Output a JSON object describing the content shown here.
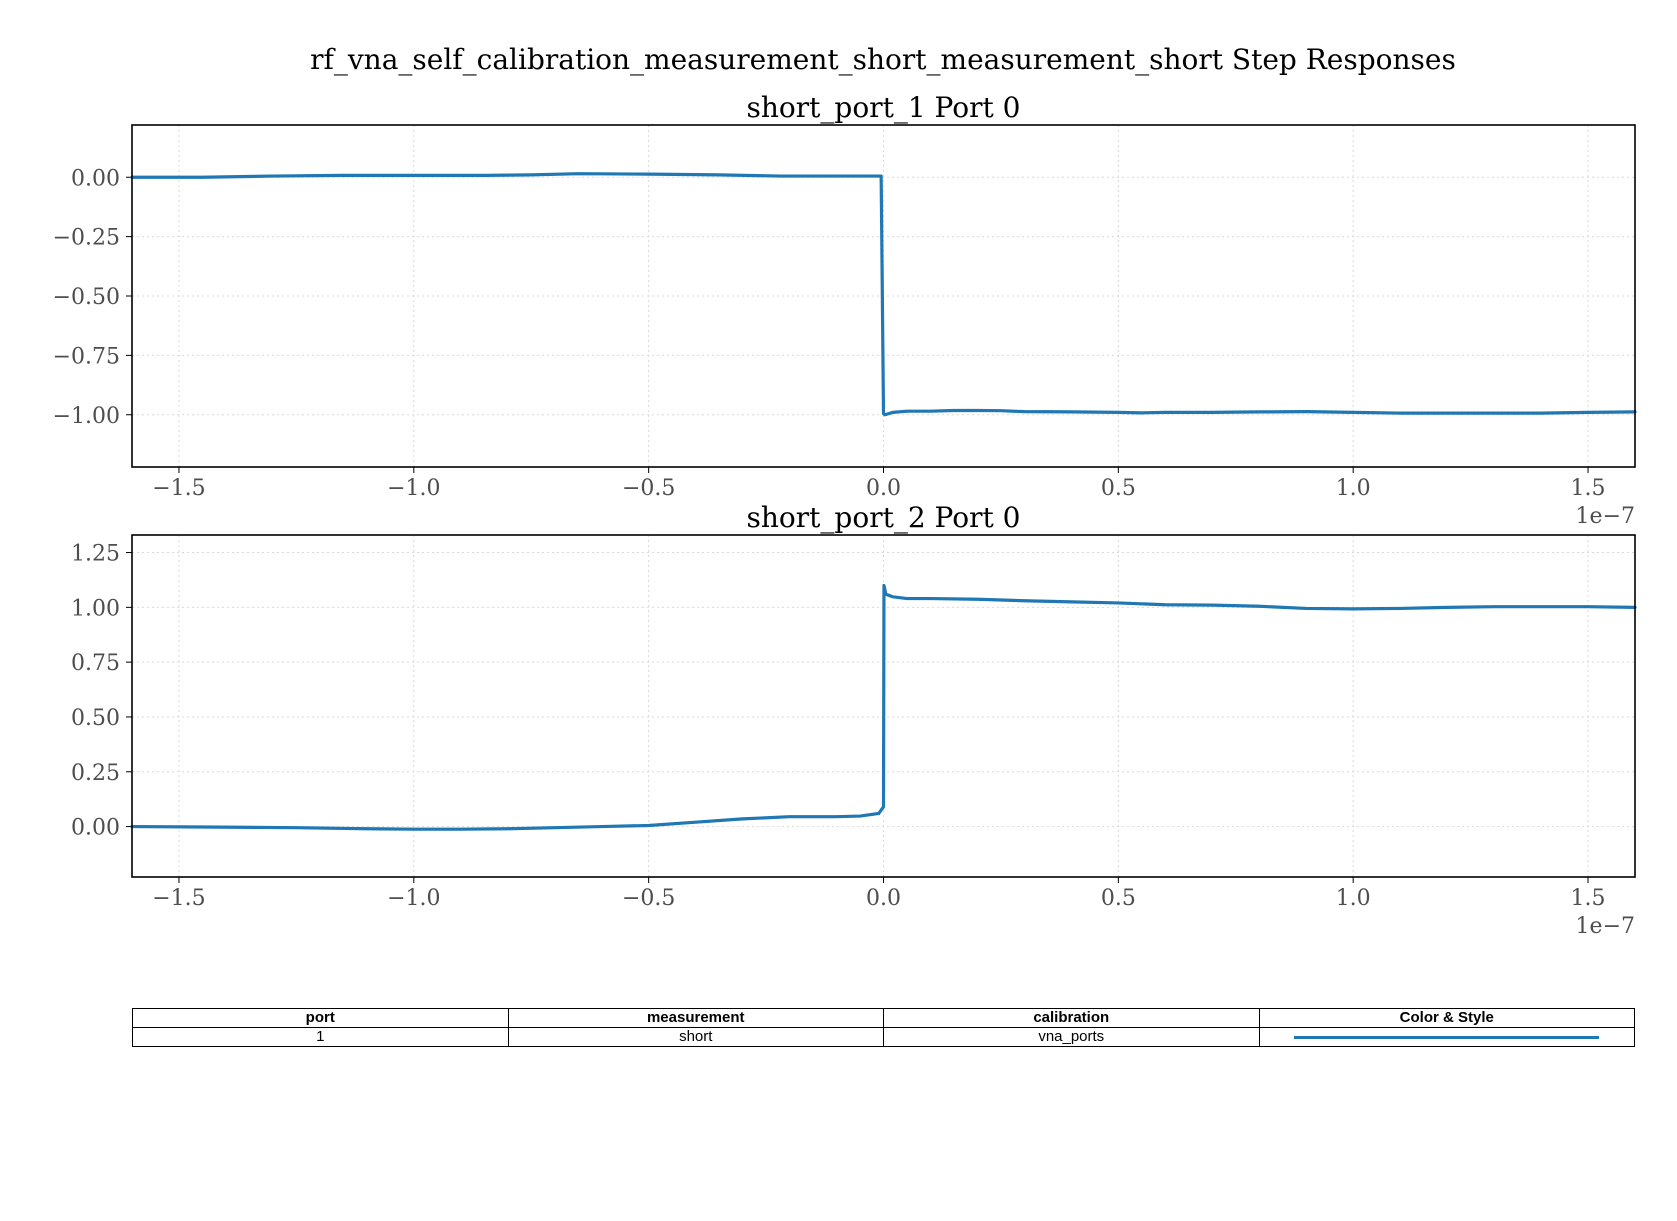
{
  "suptitle": "rf_vna_self_calibration_measurement_short_measurement_short Step Responses",
  "colors": {
    "series": "#1f77b4"
  },
  "chart_data": [
    {
      "type": "line",
      "title": "short_port_1 Port 0",
      "xlabel": "",
      "ylabel": "",
      "x_offset_label": "1e−7",
      "xlim": [
        -1.6,
        1.6
      ],
      "ylim": [
        -1.22,
        0.22
      ],
      "xticks": [
        -1.5,
        -1.0,
        -0.5,
        0.0,
        0.5,
        1.0,
        1.5
      ],
      "xtick_labels": [
        "−1.5",
        "−1.0",
        "−0.5",
        "0.0",
        "0.5",
        "1.0",
        "1.5"
      ],
      "yticks": [
        0.0,
        -0.25,
        -0.5,
        -0.75,
        -1.0
      ],
      "ytick_labels": [
        "0.00",
        "−0.25",
        "−0.50",
        "−0.75",
        "−1.00"
      ],
      "grid": true,
      "series": [
        {
          "x": [
            -1.6,
            -1.45,
            -1.3,
            -1.15,
            -1.0,
            -0.85,
            -0.75,
            -0.65,
            -0.5,
            -0.35,
            -0.22,
            -0.15,
            -0.1,
            -0.05,
            -0.005,
            0.0,
            0.003,
            0.02,
            0.05,
            0.1,
            0.15,
            0.2,
            0.25,
            0.3,
            0.4,
            0.5,
            0.55,
            0.6,
            0.7,
            0.8,
            0.9,
            1.0,
            1.1,
            1.2,
            1.3,
            1.4,
            1.5,
            1.6
          ],
          "y": [
            0.0,
            0.0,
            0.005,
            0.008,
            0.008,
            0.008,
            0.01,
            0.015,
            0.013,
            0.01,
            0.005,
            0.005,
            0.005,
            0.005,
            0.005,
            -0.995,
            -1.0,
            -0.99,
            -0.985,
            -0.985,
            -0.982,
            -0.982,
            -0.983,
            -0.987,
            -0.988,
            -0.99,
            -0.992,
            -0.99,
            -0.99,
            -0.988,
            -0.987,
            -0.99,
            -0.993,
            -0.993,
            -0.993,
            -0.993,
            -0.99,
            -0.988
          ]
        }
      ]
    },
    {
      "type": "line",
      "title": "short_port_2 Port 0",
      "xlabel": "",
      "ylabel": "",
      "x_offset_label": "1e−7",
      "xlim": [
        -1.6,
        1.6
      ],
      "ylim": [
        -0.23,
        1.33
      ],
      "xticks": [
        -1.5,
        -1.0,
        -0.5,
        0.0,
        0.5,
        1.0,
        1.5
      ],
      "xtick_labels": [
        "−1.5",
        "−1.0",
        "−0.5",
        "0.0",
        "0.5",
        "1.0",
        "1.5"
      ],
      "yticks": [
        1.25,
        1.0,
        0.75,
        0.5,
        0.25,
        0.0
      ],
      "ytick_labels": [
        "1.25",
        "1.00",
        "0.75",
        "0.50",
        "0.25",
        "0.00"
      ],
      "grid": true,
      "series": [
        {
          "x": [
            -1.6,
            -1.45,
            -1.25,
            -1.1,
            -1.0,
            -0.9,
            -0.8,
            -0.7,
            -0.6,
            -0.5,
            -0.4,
            -0.3,
            -0.2,
            -0.1,
            -0.05,
            -0.01,
            0.0,
            0.001,
            0.005,
            0.02,
            0.05,
            0.1,
            0.2,
            0.3,
            0.4,
            0.5,
            0.6,
            0.7,
            0.8,
            0.9,
            1.0,
            1.1,
            1.2,
            1.3,
            1.4,
            1.5,
            1.6
          ],
          "y": [
            0.0,
            -0.002,
            -0.005,
            -0.01,
            -0.012,
            -0.012,
            -0.01,
            -0.005,
            0.0,
            0.005,
            0.02,
            0.035,
            0.045,
            0.045,
            0.048,
            0.06,
            0.09,
            1.1,
            1.06,
            1.048,
            1.04,
            1.04,
            1.037,
            1.03,
            1.025,
            1.02,
            1.012,
            1.01,
            1.005,
            0.995,
            0.993,
            0.995,
            1.0,
            1.003,
            1.003,
            1.003,
            1.0
          ]
        }
      ]
    }
  ],
  "legend_table": {
    "headers": [
      "port",
      "measurement",
      "calibration",
      "Color & Style"
    ],
    "rows": [
      {
        "port": "1",
        "measurement": "short",
        "calibration": "vna_ports"
      }
    ]
  }
}
